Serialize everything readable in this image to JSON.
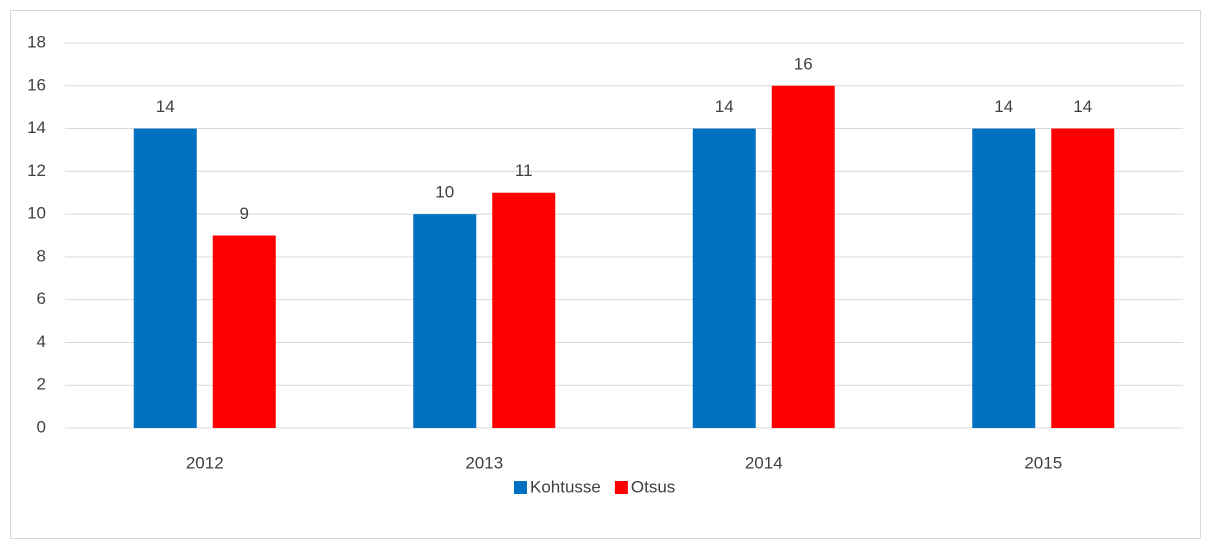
{
  "chart_data": {
    "type": "bar",
    "categories": [
      "2012",
      "2013",
      "2014",
      "2015"
    ],
    "series": [
      {
        "name": "Kohtusse",
        "color": "#0070c0",
        "values": [
          14,
          10,
          14,
          14
        ]
      },
      {
        "name": "Otsus",
        "color": "#ff0000",
        "values": [
          9,
          11,
          16,
          14
        ]
      }
    ],
    "ylim": [
      0,
      18
    ],
    "yticks": [
      0,
      2,
      4,
      6,
      8,
      10,
      12,
      14,
      16,
      18
    ],
    "grid": true,
    "legend": "bottom"
  }
}
